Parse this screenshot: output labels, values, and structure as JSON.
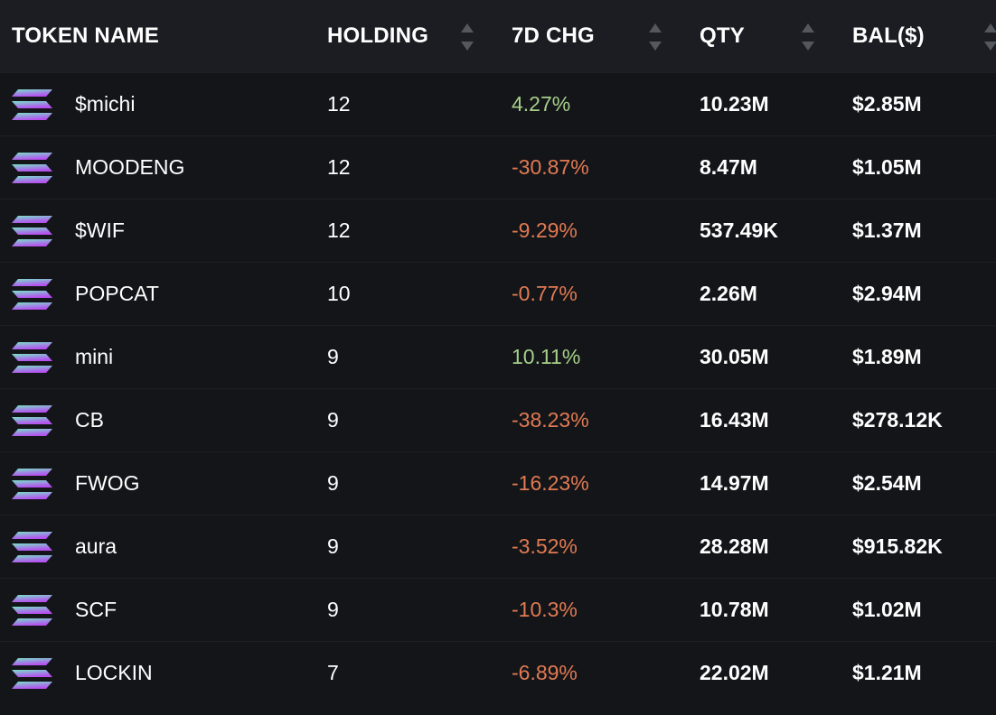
{
  "columns": {
    "token_name": "TOKEN NAME",
    "holding": "HOLDING",
    "change_7d": "7D CHG",
    "qty": "QTY",
    "balance": "BAL($)"
  },
  "colors": {
    "positive": "#a6cf8a",
    "negative": "#e07a52",
    "logo_top": "#79e3c7",
    "logo_bottom": "#b750f0"
  },
  "rows": [
    {
      "name": "$michi",
      "holding": "12",
      "change": "4.27%",
      "trend": "pos",
      "qty": "10.23M",
      "balance": "$2.85M",
      "icon": "solana-icon"
    },
    {
      "name": "MOODENG",
      "holding": "12",
      "change": "-30.87%",
      "trend": "neg",
      "qty": "8.47M",
      "balance": "$1.05M",
      "icon": "solana-icon"
    },
    {
      "name": "$WIF",
      "holding": "12",
      "change": "-9.29%",
      "trend": "neg",
      "qty": "537.49K",
      "balance": "$1.37M",
      "icon": "solana-icon"
    },
    {
      "name": "POPCAT",
      "holding": "10",
      "change": "-0.77%",
      "trend": "neg",
      "qty": "2.26M",
      "balance": "$2.94M",
      "icon": "solana-icon"
    },
    {
      "name": "mini",
      "holding": "9",
      "change": "10.11%",
      "trend": "pos",
      "qty": "30.05M",
      "balance": "$1.89M",
      "icon": "solana-icon"
    },
    {
      "name": "CB",
      "holding": "9",
      "change": "-38.23%",
      "trend": "neg",
      "qty": "16.43M",
      "balance": "$278.12K",
      "icon": "solana-icon"
    },
    {
      "name": "FWOG",
      "holding": "9",
      "change": "-16.23%",
      "trend": "neg",
      "qty": "14.97M",
      "balance": "$2.54M",
      "icon": "solana-icon"
    },
    {
      "name": "aura",
      "holding": "9",
      "change": "-3.52%",
      "trend": "neg",
      "qty": "28.28M",
      "balance": "$915.82K",
      "icon": "solana-icon"
    },
    {
      "name": "SCF",
      "holding": "9",
      "change": "-10.3%",
      "trend": "neg",
      "qty": "10.78M",
      "balance": "$1.02M",
      "icon": "solana-icon"
    },
    {
      "name": "LOCKIN",
      "holding": "7",
      "change": "-6.89%",
      "trend": "neg",
      "qty": "22.02M",
      "balance": "$1.21M",
      "icon": "solana-icon"
    }
  ]
}
